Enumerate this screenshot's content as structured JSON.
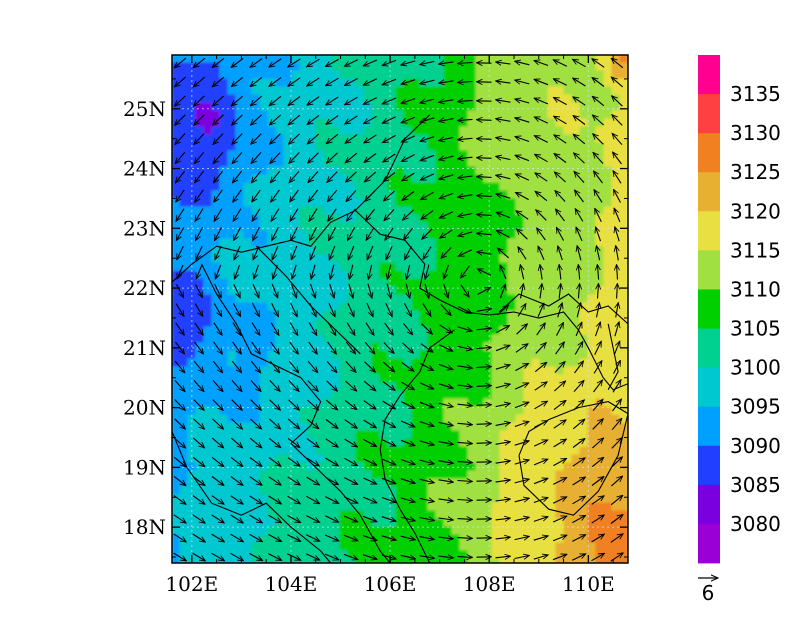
{
  "map": {
    "lon_range": [
      101.6,
      110.8
    ],
    "lat_range": [
      17.4,
      25.9
    ],
    "x_ticks": [
      {
        "value": 102,
        "label": "102E"
      },
      {
        "value": 104,
        "label": "104E"
      },
      {
        "value": 106,
        "label": "106E"
      },
      {
        "value": 108,
        "label": "108E"
      },
      {
        "value": 110,
        "label": "110E"
      }
    ],
    "y_ticks": [
      {
        "value": 25,
        "label": "25N"
      },
      {
        "value": 24,
        "label": "24N"
      },
      {
        "value": 23,
        "label": "23N"
      },
      {
        "value": 22,
        "label": "22N"
      },
      {
        "value": 21,
        "label": "21N"
      },
      {
        "value": 20,
        "label": "20N"
      },
      {
        "value": 19,
        "label": "19N"
      },
      {
        "value": 18,
        "label": "18N"
      }
    ],
    "grid": "dotted",
    "field": "shaded contours with wind vectors",
    "vortex_center": [
      107.8,
      22.1
    ]
  },
  "colorbar": {
    "levels": [
      "3080",
      "3085",
      "3090",
      "3095",
      "3100",
      "3105",
      "3110",
      "3115",
      "3120",
      "3125",
      "3130",
      "3135"
    ],
    "colors": [
      "#9a00d6",
      "#7a00e0",
      "#2040ff",
      "#00a0ff",
      "#00c8d0",
      "#00d090",
      "#00d000",
      "#a0e040",
      "#e8e040",
      "#e8b030",
      "#f08020",
      "#ff4040",
      "#ff0090"
    ]
  },
  "reference_vector": {
    "label": "6",
    "value": 6
  }
}
